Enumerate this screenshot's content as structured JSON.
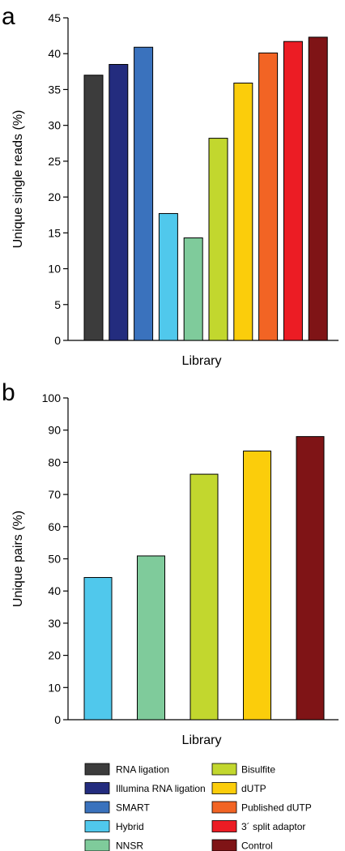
{
  "chart_data": [
    {
      "panel": "a",
      "type": "bar",
      "xlabel": "Library",
      "ylabel": "Unique single reads (%)",
      "ylim": [
        0,
        45
      ],
      "yticks": [
        0,
        5,
        10,
        15,
        20,
        25,
        30,
        35,
        40,
        45
      ],
      "grid": false,
      "series": [
        {
          "name": "RNA ligation",
          "value": 37.0
        },
        {
          "name": "Illumina RNA ligation",
          "value": 38.5
        },
        {
          "name": "SMART",
          "value": 40.9
        },
        {
          "name": "Hybrid",
          "value": 17.7
        },
        {
          "name": "NNSR",
          "value": 14.3
        },
        {
          "name": "Bisulfite",
          "value": 28.2
        },
        {
          "name": "dUTP",
          "value": 35.9
        },
        {
          "name": "Published dUTP",
          "value": 40.1
        },
        {
          "name": "3´ split adaptor",
          "value": 41.7
        },
        {
          "name": "Control",
          "value": 42.3
        }
      ]
    },
    {
      "panel": "b",
      "type": "bar",
      "xlabel": "Library",
      "ylabel": "Unique pairs (%)",
      "ylim": [
        0,
        100
      ],
      "yticks": [
        0,
        10,
        20,
        30,
        40,
        50,
        60,
        70,
        80,
        90,
        100
      ],
      "grid": false,
      "series": [
        {
          "name": "Hybrid",
          "value": 44.2
        },
        {
          "name": "NNSR",
          "value": 50.9
        },
        {
          "name": "Bisulfite",
          "value": 76.3
        },
        {
          "name": "dUTP",
          "value": 83.5
        },
        {
          "name": "Control",
          "value": 88.0
        }
      ]
    }
  ],
  "legend": {
    "placement": "bottom",
    "items": [
      {
        "label": "RNA ligation",
        "color": "#3c3c3c"
      },
      {
        "label": "Illumina RNA ligation",
        "color": "#232c7e"
      },
      {
        "label": "SMART",
        "color": "#3a72bd"
      },
      {
        "label": "Hybrid",
        "color": "#50c8ec"
      },
      {
        "label": "NNSR",
        "color": "#7fcb9b"
      },
      {
        "label": "Bisulfite",
        "color": "#c2d72e"
      },
      {
        "label": "dUTP",
        "color": "#fbcd0b"
      },
      {
        "label": "Published dUTP",
        "color": "#f26424"
      },
      {
        "label": "3´ split adaptor",
        "color": "#ec1c24"
      },
      {
        "label": "Control",
        "color": "#7f1416"
      }
    ]
  }
}
